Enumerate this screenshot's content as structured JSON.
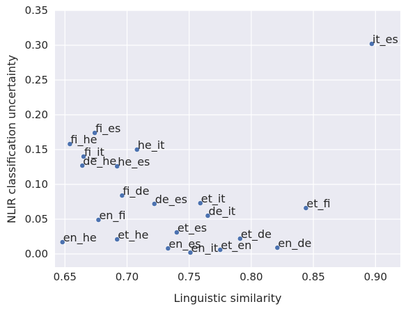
{
  "chart_data": {
    "type": "scatter",
    "title": "",
    "xlabel": "Linguistic similarity",
    "ylabel": "NLIR classification uncertainty",
    "xlim": [
      0.642,
      0.92
    ],
    "ylim": [
      -0.019,
      0.35
    ],
    "x_ticks": [
      "0.65",
      "0.70",
      "0.75",
      "0.80",
      "0.85",
      "0.90"
    ],
    "x_tick_values": [
      0.65,
      0.7,
      0.75,
      0.8,
      0.85,
      0.9
    ],
    "y_ticks": [
      "0.00",
      "0.05",
      "0.10",
      "0.15",
      "0.20",
      "0.25",
      "0.30",
      "0.35"
    ],
    "y_tick_values": [
      0.0,
      0.05,
      0.1,
      0.15,
      0.2,
      0.25,
      0.3,
      0.35
    ],
    "grid": true,
    "style": {
      "background": "#eaeaf2",
      "point_color": "#4c72b0"
    },
    "points": [
      {
        "label": "it_es",
        "x": 0.897,
        "y": 0.302
      },
      {
        "label": "fi_es",
        "x": 0.674,
        "y": 0.174
      },
      {
        "label": "fi_he",
        "x": 0.654,
        "y": 0.158
      },
      {
        "label": "he_it",
        "x": 0.708,
        "y": 0.15
      },
      {
        "label": "fi_it",
        "x": 0.665,
        "y": 0.14
      },
      {
        "label": "de_he",
        "x": 0.664,
        "y": 0.127
      },
      {
        "label": "he_es",
        "x": 0.692,
        "y": 0.126
      },
      {
        "label": "fi_de",
        "x": 0.696,
        "y": 0.084
      },
      {
        "label": "de_es",
        "x": 0.722,
        "y": 0.072
      },
      {
        "label": "et_it",
        "x": 0.759,
        "y": 0.073
      },
      {
        "label": "et_fi",
        "x": 0.844,
        "y": 0.066
      },
      {
        "label": "de_it",
        "x": 0.765,
        "y": 0.055
      },
      {
        "label": "en_fi",
        "x": 0.677,
        "y": 0.049
      },
      {
        "label": "et_es",
        "x": 0.74,
        "y": 0.031
      },
      {
        "label": "et_he",
        "x": 0.692,
        "y": 0.021
      },
      {
        "label": "et_de",
        "x": 0.791,
        "y": 0.022
      },
      {
        "label": "en_he",
        "x": 0.648,
        "y": 0.017
      },
      {
        "label": "en_es",
        "x": 0.733,
        "y": 0.008
      },
      {
        "label": "en_de",
        "x": 0.821,
        "y": 0.009
      },
      {
        "label": "et_en",
        "x": 0.775,
        "y": 0.006
      },
      {
        "label": "en_it",
        "x": 0.751,
        "y": 0.002
      }
    ]
  }
}
